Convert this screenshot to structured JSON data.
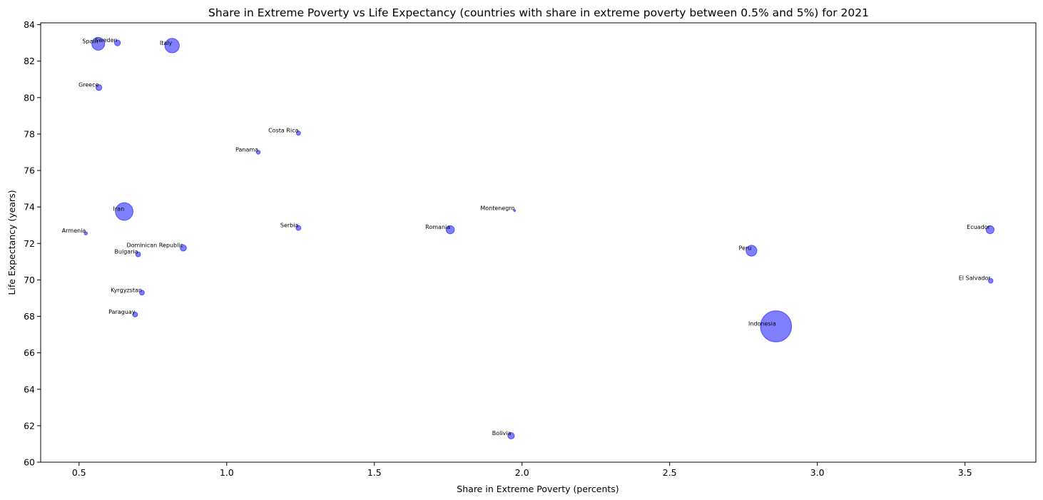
{
  "chart_data": {
    "type": "scatter",
    "title": "Share in Extreme Poverty vs Life Expectancy (countries with share in extreme poverty between 0.5% and 5%) for 2021",
    "xlabel": "Share in Extreme Poverty (percents)",
    "ylabel": "Life Expectancy (years)",
    "xlim": [
      0.37,
      3.74
    ],
    "ylim": [
      60,
      84.1
    ],
    "xticks": [
      "0.5",
      "1.0",
      "1.5",
      "2.0",
      "2.5",
      "3.0",
      "3.5"
    ],
    "yticks": [
      "60",
      "62",
      "64",
      "66",
      "68",
      "70",
      "72",
      "74",
      "76",
      "78",
      "80",
      "82",
      "84"
    ],
    "grid": false,
    "marker_color": "#0000ff",
    "marker_alpha": 0.5,
    "size_encoding": "population",
    "points": [
      {
        "label": "Spain",
        "x": 0.565,
        "y": 82.95,
        "size": 47
      },
      {
        "label": "Sweden",
        "x": 0.63,
        "y": 83.0,
        "size": 10
      },
      {
        "label": "Italy",
        "x": 0.815,
        "y": 82.85,
        "size": 59
      },
      {
        "label": "Greece",
        "x": 0.567,
        "y": 80.55,
        "size": 10
      },
      {
        "label": "Costa Rica",
        "x": 1.243,
        "y": 78.05,
        "size": 5
      },
      {
        "label": "Panama",
        "x": 1.107,
        "y": 77.0,
        "size": 4.4
      },
      {
        "label": "Iran",
        "x": 0.653,
        "y": 73.75,
        "size": 88
      },
      {
        "label": "Montenegro",
        "x": 1.975,
        "y": 73.8,
        "size": 0.6
      },
      {
        "label": "Serbia",
        "x": 1.243,
        "y": 72.85,
        "size": 6.8
      },
      {
        "label": "Romania",
        "x": 1.757,
        "y": 72.75,
        "size": 19
      },
      {
        "label": "Armenia",
        "x": 0.523,
        "y": 72.55,
        "size": 2.8
      },
      {
        "label": "Dominican Republic",
        "x": 0.853,
        "y": 71.75,
        "size": 11
      },
      {
        "label": "Bulgaria",
        "x": 0.7,
        "y": 71.4,
        "size": 6.9
      },
      {
        "label": "Peru",
        "x": 2.777,
        "y": 71.6,
        "size": 33
      },
      {
        "label": "Ecuador",
        "x": 3.585,
        "y": 72.75,
        "size": 18
      },
      {
        "label": "El Salvador",
        "x": 3.587,
        "y": 69.95,
        "size": 6.3
      },
      {
        "label": "Kyrgyzstan",
        "x": 0.713,
        "y": 69.3,
        "size": 6.7
      },
      {
        "label": "Paraguay",
        "x": 0.69,
        "y": 68.1,
        "size": 6.7
      },
      {
        "label": "Indonesia",
        "x": 2.86,
        "y": 67.45,
        "size": 273
      },
      {
        "label": "Bolivia",
        "x": 1.963,
        "y": 61.45,
        "size": 12
      }
    ]
  }
}
